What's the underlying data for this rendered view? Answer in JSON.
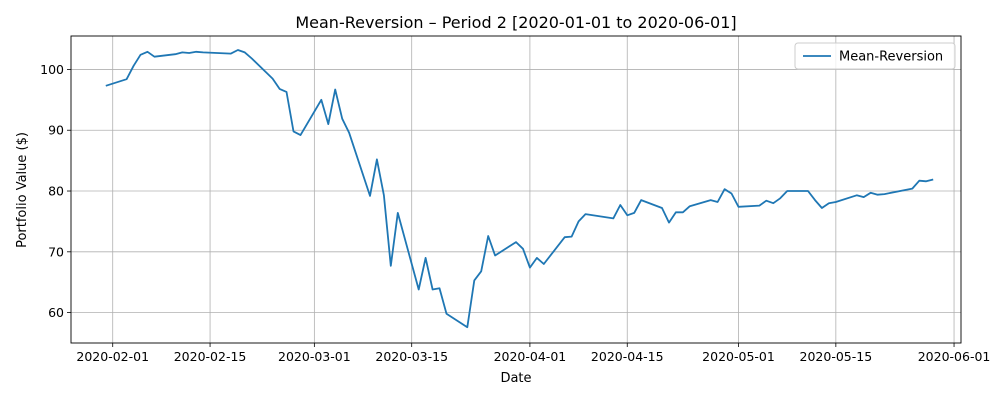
{
  "chart_data": {
    "type": "line",
    "title": "Mean-Reversion – Period 2 [2020-01-01 to 2020-06-01]",
    "xlabel": "Date",
    "ylabel": "Portfolio Value ($)",
    "grid": true,
    "legend_placement": "top-right",
    "xlim": [
      "2020-01-26",
      "2020-06-02"
    ],
    "ylim": [
      55,
      105.5
    ],
    "x_ticks": [
      "2020-02-01",
      "2020-02-15",
      "2020-03-01",
      "2020-03-15",
      "2020-04-01",
      "2020-04-15",
      "2020-05-01",
      "2020-05-15",
      "2020-06-01"
    ],
    "y_ticks": [
      60,
      70,
      80,
      90,
      100
    ],
    "series_color": "#1f77b4",
    "series": [
      {
        "name": "Mean-Reversion",
        "x": [
          "2020-01-31",
          "2020-02-03",
          "2020-02-04",
          "2020-02-05",
          "2020-02-06",
          "2020-02-07",
          "2020-02-10",
          "2020-02-11",
          "2020-02-12",
          "2020-02-13",
          "2020-02-14",
          "2020-02-18",
          "2020-02-19",
          "2020-02-20",
          "2020-02-21",
          "2020-02-24",
          "2020-02-25",
          "2020-02-26",
          "2020-02-27",
          "2020-02-28",
          "2020-03-02",
          "2020-03-03",
          "2020-03-04",
          "2020-03-05",
          "2020-03-06",
          "2020-03-09",
          "2020-03-10",
          "2020-03-11",
          "2020-03-12",
          "2020-03-13",
          "2020-03-16",
          "2020-03-17",
          "2020-03-18",
          "2020-03-19",
          "2020-03-20",
          "2020-03-23",
          "2020-03-24",
          "2020-03-25",
          "2020-03-26",
          "2020-03-27",
          "2020-03-30",
          "2020-03-31",
          "2020-04-01",
          "2020-04-02",
          "2020-04-03",
          "2020-04-06",
          "2020-04-07",
          "2020-04-08",
          "2020-04-09",
          "2020-04-13",
          "2020-04-14",
          "2020-04-15",
          "2020-04-16",
          "2020-04-17",
          "2020-04-20",
          "2020-04-21",
          "2020-04-22",
          "2020-04-23",
          "2020-04-24",
          "2020-04-27",
          "2020-04-28",
          "2020-04-29",
          "2020-04-30",
          "2020-05-01",
          "2020-05-04",
          "2020-05-05",
          "2020-05-06",
          "2020-05-07",
          "2020-05-08",
          "2020-05-11",
          "2020-05-12",
          "2020-05-13",
          "2020-05-14",
          "2020-05-15",
          "2020-05-18",
          "2020-05-19",
          "2020-05-20",
          "2020-05-21",
          "2020-05-22",
          "2020-05-26",
          "2020-05-27",
          "2020-05-28",
          "2020-05-29"
        ],
        "values": [
          97.3,
          98.4,
          100.6,
          102.4,
          102.9,
          102.1,
          102.5,
          102.8,
          102.7,
          102.9,
          102.8,
          102.6,
          103.2,
          102.8,
          101.8,
          98.5,
          96.8,
          96.3,
          89.8,
          89.2,
          95.0,
          91.0,
          96.7,
          91.9,
          89.6,
          79.2,
          85.2,
          79.3,
          67.7,
          76.4,
          63.8,
          69.0,
          63.8,
          64.0,
          59.8,
          57.6,
          65.3,
          66.8,
          72.6,
          69.4,
          71.6,
          70.5,
          67.4,
          69.0,
          68.0,
          72.4,
          72.5,
          75.0,
          76.2,
          75.5,
          77.7,
          76.0,
          76.4,
          78.5,
          77.2,
          74.8,
          76.5,
          76.5,
          77.5,
          78.5,
          78.2,
          80.3,
          79.6,
          77.4,
          77.6,
          78.4,
          78.0,
          78.8,
          80.0,
          80.0,
          78.5,
          77.2,
          78.0,
          78.2,
          79.3,
          79.0,
          79.7,
          79.4,
          79.5,
          80.4,
          81.7,
          81.6,
          81.9
        ]
      }
    ]
  }
}
